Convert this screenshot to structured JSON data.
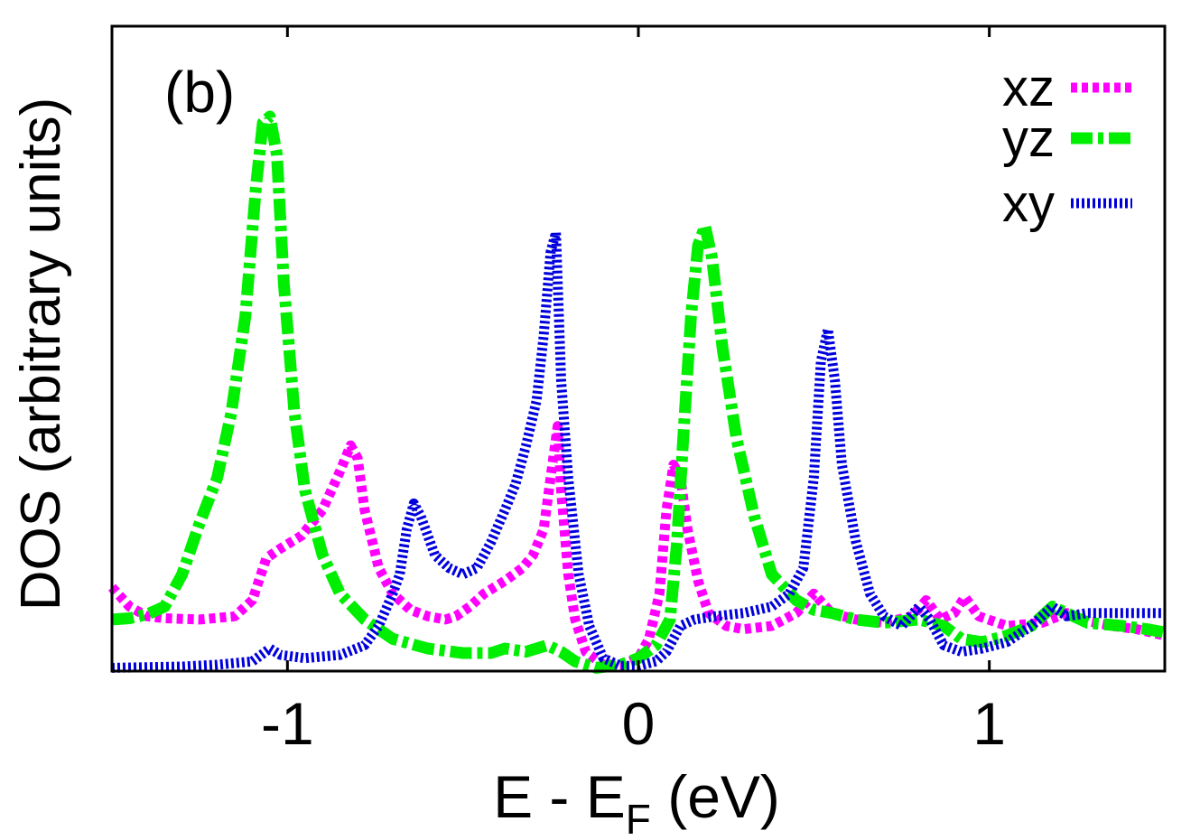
{
  "chart_data": {
    "type": "line",
    "panel_label": "(b)",
    "xlabel": {
      "main": "E - E",
      "sub": "F",
      "unit": " (eV)"
    },
    "ylabel": "DOS (arbitrary units)",
    "xlim": [
      -1.5,
      1.5
    ],
    "ylim": [
      0,
      1
    ],
    "xticks": [
      {
        "value": -1,
        "label": "-1"
      },
      {
        "value": 0,
        "label": "0"
      },
      {
        "value": 1,
        "label": "1"
      }
    ],
    "grid": false,
    "legend_position": "top-right",
    "series": [
      {
        "name": "xz",
        "color": "#ff00ff",
        "dash": "7,5",
        "width": 11,
        "points": [
          [
            -1.5,
            0.13
          ],
          [
            -1.45,
            0.1
          ],
          [
            -1.4,
            0.085
          ],
          [
            -1.35,
            0.082
          ],
          [
            -1.25,
            0.08
          ],
          [
            -1.15,
            0.085
          ],
          [
            -1.1,
            0.11
          ],
          [
            -1.06,
            0.175
          ],
          [
            -1.02,
            0.19
          ],
          [
            -0.96,
            0.21
          ],
          [
            -0.9,
            0.25
          ],
          [
            -0.85,
            0.31
          ],
          [
            -0.82,
            0.35
          ],
          [
            -0.8,
            0.33
          ],
          [
            -0.78,
            0.25
          ],
          [
            -0.74,
            0.16
          ],
          [
            -0.7,
            0.12
          ],
          [
            -0.65,
            0.095
          ],
          [
            -0.6,
            0.085
          ],
          [
            -0.55,
            0.08
          ],
          [
            -0.52,
            0.085
          ],
          [
            -0.48,
            0.1
          ],
          [
            -0.44,
            0.12
          ],
          [
            -0.38,
            0.14
          ],
          [
            -0.33,
            0.16
          ],
          [
            -0.3,
            0.18
          ],
          [
            -0.27,
            0.22
          ],
          [
            -0.25,
            0.3
          ],
          [
            -0.23,
            0.38
          ],
          [
            -0.22,
            0.28
          ],
          [
            -0.2,
            0.15
          ],
          [
            -0.18,
            0.08
          ],
          [
            -0.15,
            0.03
          ],
          [
            -0.1,
            0.01
          ],
          [
            -0.05,
            0.01
          ],
          [
            0.0,
            0.02
          ],
          [
            0.03,
            0.05
          ],
          [
            0.06,
            0.12
          ],
          [
            0.08,
            0.25
          ],
          [
            0.1,
            0.32
          ],
          [
            0.12,
            0.3
          ],
          [
            0.14,
            0.22
          ],
          [
            0.17,
            0.14
          ],
          [
            0.2,
            0.09
          ],
          [
            0.25,
            0.07
          ],
          [
            0.3,
            0.065
          ],
          [
            0.38,
            0.07
          ],
          [
            0.45,
            0.09
          ],
          [
            0.5,
            0.12
          ],
          [
            0.55,
            0.09
          ],
          [
            0.62,
            0.08
          ],
          [
            0.7,
            0.075
          ],
          [
            0.78,
            0.085
          ],
          [
            0.82,
            0.11
          ],
          [
            0.86,
            0.08
          ],
          [
            0.9,
            0.09
          ],
          [
            0.93,
            0.115
          ],
          [
            0.97,
            0.085
          ],
          [
            1.05,
            0.07
          ],
          [
            1.15,
            0.075
          ],
          [
            1.22,
            0.09
          ],
          [
            1.26,
            0.08
          ],
          [
            1.35,
            0.07
          ],
          [
            1.42,
            0.065
          ],
          [
            1.5,
            0.055
          ]
        ]
      },
      {
        "name": "yz",
        "color": "#00ee00",
        "dash": "24,6,6,6",
        "width": 13,
        "points": [
          [
            -1.5,
            0.08
          ],
          [
            -1.45,
            0.082
          ],
          [
            -1.4,
            0.088
          ],
          [
            -1.35,
            0.1
          ],
          [
            -1.3,
            0.15
          ],
          [
            -1.25,
            0.23
          ],
          [
            -1.2,
            0.3
          ],
          [
            -1.16,
            0.4
          ],
          [
            -1.12,
            0.55
          ],
          [
            -1.09,
            0.75
          ],
          [
            -1.07,
            0.85
          ],
          [
            -1.05,
            0.86
          ],
          [
            -1.03,
            0.8
          ],
          [
            -1.01,
            0.6
          ],
          [
            -0.98,
            0.4
          ],
          [
            -0.95,
            0.28
          ],
          [
            -0.9,
            0.18
          ],
          [
            -0.85,
            0.12
          ],
          [
            -0.78,
            0.08
          ],
          [
            -0.7,
            0.05
          ],
          [
            -0.6,
            0.035
          ],
          [
            -0.5,
            0.028
          ],
          [
            -0.42,
            0.028
          ],
          [
            -0.38,
            0.035
          ],
          [
            -0.32,
            0.03
          ],
          [
            -0.26,
            0.04
          ],
          [
            -0.22,
            0.03
          ],
          [
            -0.18,
            0.015
          ],
          [
            -0.12,
            0.005
          ],
          [
            -0.05,
            0.01
          ],
          [
            0.0,
            0.02
          ],
          [
            0.05,
            0.04
          ],
          [
            0.09,
            0.08
          ],
          [
            0.11,
            0.2
          ],
          [
            0.13,
            0.38
          ],
          [
            0.15,
            0.55
          ],
          [
            0.17,
            0.66
          ],
          [
            0.19,
            0.69
          ],
          [
            0.21,
            0.64
          ],
          [
            0.24,
            0.5
          ],
          [
            0.28,
            0.36
          ],
          [
            0.33,
            0.24
          ],
          [
            0.38,
            0.15
          ],
          [
            0.45,
            0.11
          ],
          [
            0.5,
            0.095
          ],
          [
            0.55,
            0.09
          ],
          [
            0.62,
            0.08
          ],
          [
            0.7,
            0.075
          ],
          [
            0.8,
            0.08
          ],
          [
            0.87,
            0.07
          ],
          [
            0.92,
            0.05
          ],
          [
            0.98,
            0.045
          ],
          [
            1.05,
            0.055
          ],
          [
            1.12,
            0.07
          ],
          [
            1.18,
            0.1
          ],
          [
            1.22,
            0.09
          ],
          [
            1.28,
            0.075
          ],
          [
            1.38,
            0.07
          ],
          [
            1.45,
            0.065
          ],
          [
            1.5,
            0.06
          ]
        ]
      },
      {
        "name": "xy",
        "color": "#0000dd",
        "dash": "3,3",
        "width": 11,
        "points": [
          [
            -1.5,
            0.005
          ],
          [
            -1.4,
            0.006
          ],
          [
            -1.3,
            0.007
          ],
          [
            -1.2,
            0.01
          ],
          [
            -1.1,
            0.015
          ],
          [
            -1.05,
            0.035
          ],
          [
            -1.02,
            0.025
          ],
          [
            -0.95,
            0.02
          ],
          [
            -0.85,
            0.025
          ],
          [
            -0.78,
            0.04
          ],
          [
            -0.74,
            0.07
          ],
          [
            -0.7,
            0.12
          ],
          [
            -0.68,
            0.15
          ],
          [
            -0.66,
            0.22
          ],
          [
            -0.64,
            0.26
          ],
          [
            -0.62,
            0.24
          ],
          [
            -0.58,
            0.18
          ],
          [
            -0.54,
            0.16
          ],
          [
            -0.5,
            0.15
          ],
          [
            -0.46,
            0.16
          ],
          [
            -0.42,
            0.2
          ],
          [
            -0.38,
            0.25
          ],
          [
            -0.35,
            0.29
          ],
          [
            -0.32,
            0.35
          ],
          [
            -0.29,
            0.42
          ],
          [
            -0.27,
            0.52
          ],
          [
            -0.25,
            0.65
          ],
          [
            -0.235,
            0.68
          ],
          [
            -0.22,
            0.45
          ],
          [
            -0.2,
            0.3
          ],
          [
            -0.17,
            0.15
          ],
          [
            -0.14,
            0.07
          ],
          [
            -0.1,
            0.02
          ],
          [
            -0.05,
            0.008
          ],
          [
            0.0,
            0.008
          ],
          [
            0.05,
            0.015
          ],
          [
            0.08,
            0.03
          ],
          [
            0.12,
            0.07
          ],
          [
            0.16,
            0.08
          ],
          [
            0.22,
            0.085
          ],
          [
            0.3,
            0.09
          ],
          [
            0.38,
            0.1
          ],
          [
            0.43,
            0.12
          ],
          [
            0.47,
            0.16
          ],
          [
            0.5,
            0.3
          ],
          [
            0.52,
            0.48
          ],
          [
            0.54,
            0.53
          ],
          [
            0.56,
            0.45
          ],
          [
            0.58,
            0.32
          ],
          [
            0.62,
            0.2
          ],
          [
            0.66,
            0.12
          ],
          [
            0.7,
            0.085
          ],
          [
            0.75,
            0.07
          ],
          [
            0.8,
            0.1
          ],
          [
            0.83,
            0.08
          ],
          [
            0.87,
            0.04
          ],
          [
            0.92,
            0.03
          ],
          [
            0.98,
            0.035
          ],
          [
            1.05,
            0.045
          ],
          [
            1.12,
            0.07
          ],
          [
            1.18,
            0.1
          ],
          [
            1.22,
            0.085
          ],
          [
            1.28,
            0.09
          ],
          [
            1.38,
            0.09
          ],
          [
            1.5,
            0.09
          ]
        ]
      }
    ]
  }
}
